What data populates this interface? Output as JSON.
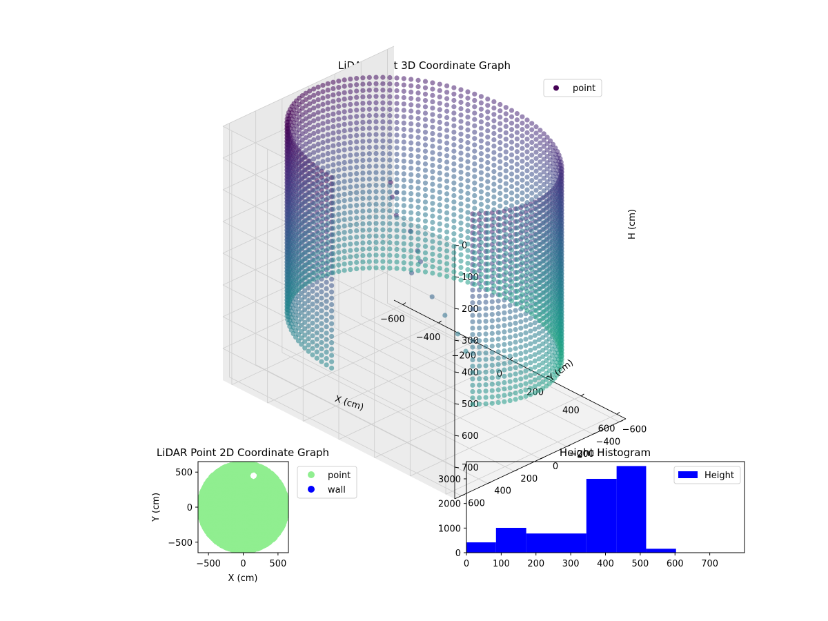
{
  "chart_data": [
    {
      "type": "scatter",
      "projection": "3d",
      "title": "LiDAR Point 3D Coordinate Graph",
      "xlabel": "X (cm)",
      "ylabel": "Y (cm)",
      "zlabel": "H (cm)",
      "xlim": [
        -650,
        650
      ],
      "ylim": [
        -650,
        650
      ],
      "zlim": [
        0,
        800
      ],
      "z_inverted": true,
      "xticks": [
        -600,
        -400,
        -200,
        0,
        200,
        400,
        600
      ],
      "yticks": [
        -600,
        -400,
        -200,
        0,
        200,
        400,
        600
      ],
      "zticks": [
        0,
        100,
        200,
        300,
        400,
        500,
        600,
        700
      ],
      "colormap": "viridis",
      "grid": true,
      "legend": {
        "position": "top-right",
        "entries": [
          {
            "name": "point",
            "color": "#440154"
          }
        ]
      },
      "series": [
        {
          "name": "point",
          "shape": "cylindrical wall, radius about 620 cm, heights 0 to 600 cm, open gap on the +Y side",
          "x_range": [
            -620,
            620
          ],
          "y_range": [
            -620,
            620
          ],
          "h_range": [
            0,
            600
          ]
        }
      ]
    },
    {
      "type": "scatter",
      "title": "LiDAR Point 2D Coordinate Graph",
      "xlabel": "X (cm)",
      "ylabel": "Y (cm)",
      "xlim": [
        -650,
        650
      ],
      "ylim": [
        -650,
        650
      ],
      "xticks": [
        -500,
        0,
        500
      ],
      "yticks": [
        -500,
        0,
        500
      ],
      "legend": {
        "position": "outside-right",
        "entries": [
          {
            "name": "point",
            "color": "#90ee90"
          },
          {
            "name": "wall",
            "color": "#0000ff"
          }
        ]
      },
      "series": [
        {
          "name": "point",
          "color": "#90ee90",
          "shape": "filled disc radius about 620 cm with a small gap near (150, 450)"
        },
        {
          "name": "wall",
          "color": "#0000ff",
          "values": []
        }
      ]
    },
    {
      "type": "bar",
      "subtype": "histogram",
      "title": "Height Histogram",
      "xlim": [
        0,
        800
      ],
      "ylim": [
        0,
        3700
      ],
      "xticks": [
        0,
        100,
        200,
        300,
        400,
        500,
        600,
        700
      ],
      "yticks": [
        0,
        1000,
        2000,
        3000
      ],
      "legend": {
        "position": "top-right",
        "entries": [
          {
            "name": "Height",
            "color": "#0000ff"
          }
        ]
      },
      "bins": [
        {
          "from": 0,
          "to": 85,
          "count": 420
        },
        {
          "from": 85,
          "to": 172,
          "count": 1010
        },
        {
          "from": 172,
          "to": 345,
          "count": 780
        },
        {
          "from": 345,
          "to": 432,
          "count": 3000
        },
        {
          "from": 432,
          "to": 517,
          "count": 3520
        },
        {
          "from": 517,
          "to": 603,
          "count": 160
        }
      ],
      "color": "#0000ff"
    }
  ]
}
